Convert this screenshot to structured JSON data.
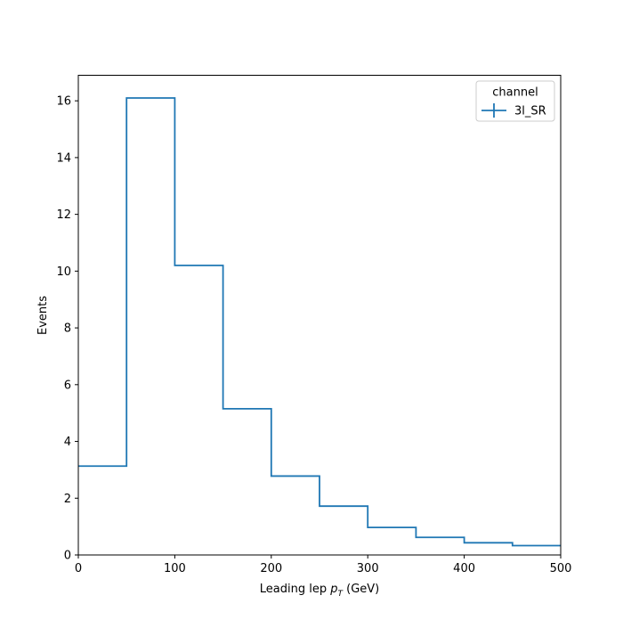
{
  "colors": {
    "series": "#1f77b4",
    "axes": "#000000",
    "legend_border": "#cccccc",
    "background": "#ffffff"
  },
  "chart_data": {
    "type": "histogram",
    "title": "",
    "xlabel": "Leading lep p_T (GeV)",
    "ylabel": "Events",
    "xlim": [
      0,
      500
    ],
    "ylim": [
      0,
      16.9
    ],
    "grid": false,
    "xticks": [
      0,
      100,
      200,
      300,
      400,
      500
    ],
    "yticks": [
      0,
      2,
      4,
      6,
      8,
      10,
      12,
      14,
      16
    ],
    "bin_edges": [
      0,
      50,
      100,
      150,
      200,
      250,
      300,
      350,
      400,
      450,
      500
    ],
    "series": [
      {
        "name": "3l_SR",
        "values": [
          3.13,
          16.1,
          10.2,
          5.15,
          2.78,
          1.72,
          0.97,
          0.62,
          0.43,
          0.33
        ]
      }
    ],
    "legend": {
      "title": "channel",
      "placement": "top-right"
    }
  }
}
